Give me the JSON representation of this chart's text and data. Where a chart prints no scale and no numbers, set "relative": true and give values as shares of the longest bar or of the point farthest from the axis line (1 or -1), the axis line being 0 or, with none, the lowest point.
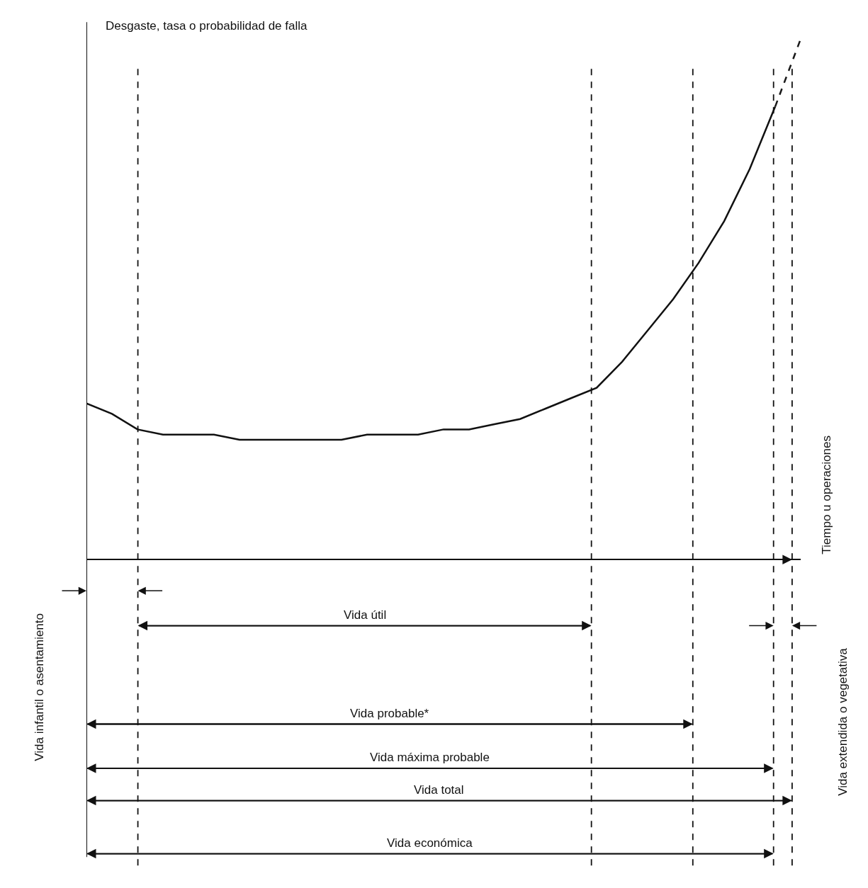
{
  "chart_data": {
    "type": "line",
    "relative": true,
    "ylabel": "Desgaste, tasa o probabilidad de falla",
    "marker": "none",
    "categories": [
      null,
      null,
      null,
      null,
      null,
      null,
      null,
      null,
      null,
      null,
      null,
      null,
      null,
      null,
      null,
      null,
      null,
      null,
      null,
      null,
      null,
      null,
      null,
      null,
      null,
      null,
      null,
      null,
      null
    ],
    "series": [
      {
        "color": "#111111",
        "line_style": "solid",
        "values": [
          0.3,
          0.28,
          0.25,
          0.24,
          0.24,
          0.24,
          0.23,
          0.23,
          0.23,
          0.23,
          0.23,
          0.24,
          0.24,
          0.24,
          0.25,
          0.25,
          0.26,
          0.27,
          0.29,
          0.31,
          0.33,
          0.38,
          0.44,
          0.5,
          0.57,
          0.65,
          0.75,
          0.87,
          null
        ]
      },
      {
        "color": "#1a1a1a",
        "line_style": "dashed",
        "values": [
          null,
          null,
          null,
          null,
          null,
          null,
          null,
          null,
          null,
          null,
          null,
          null,
          null,
          null,
          null,
          null,
          null,
          null,
          null,
          null,
          null,
          null,
          null,
          null,
          null,
          null,
          null,
          0.87,
          1.0
        ]
      }
    ],
    "annotations": [
      "Tiempo u operaciones",
      "Vida infantil o asentamiento",
      "Vida útil",
      "Vida probable*",
      "Vida máxima probable",
      "Vida total",
      "Vida económica",
      "Vida extendida o vegetativa"
    ]
  }
}
